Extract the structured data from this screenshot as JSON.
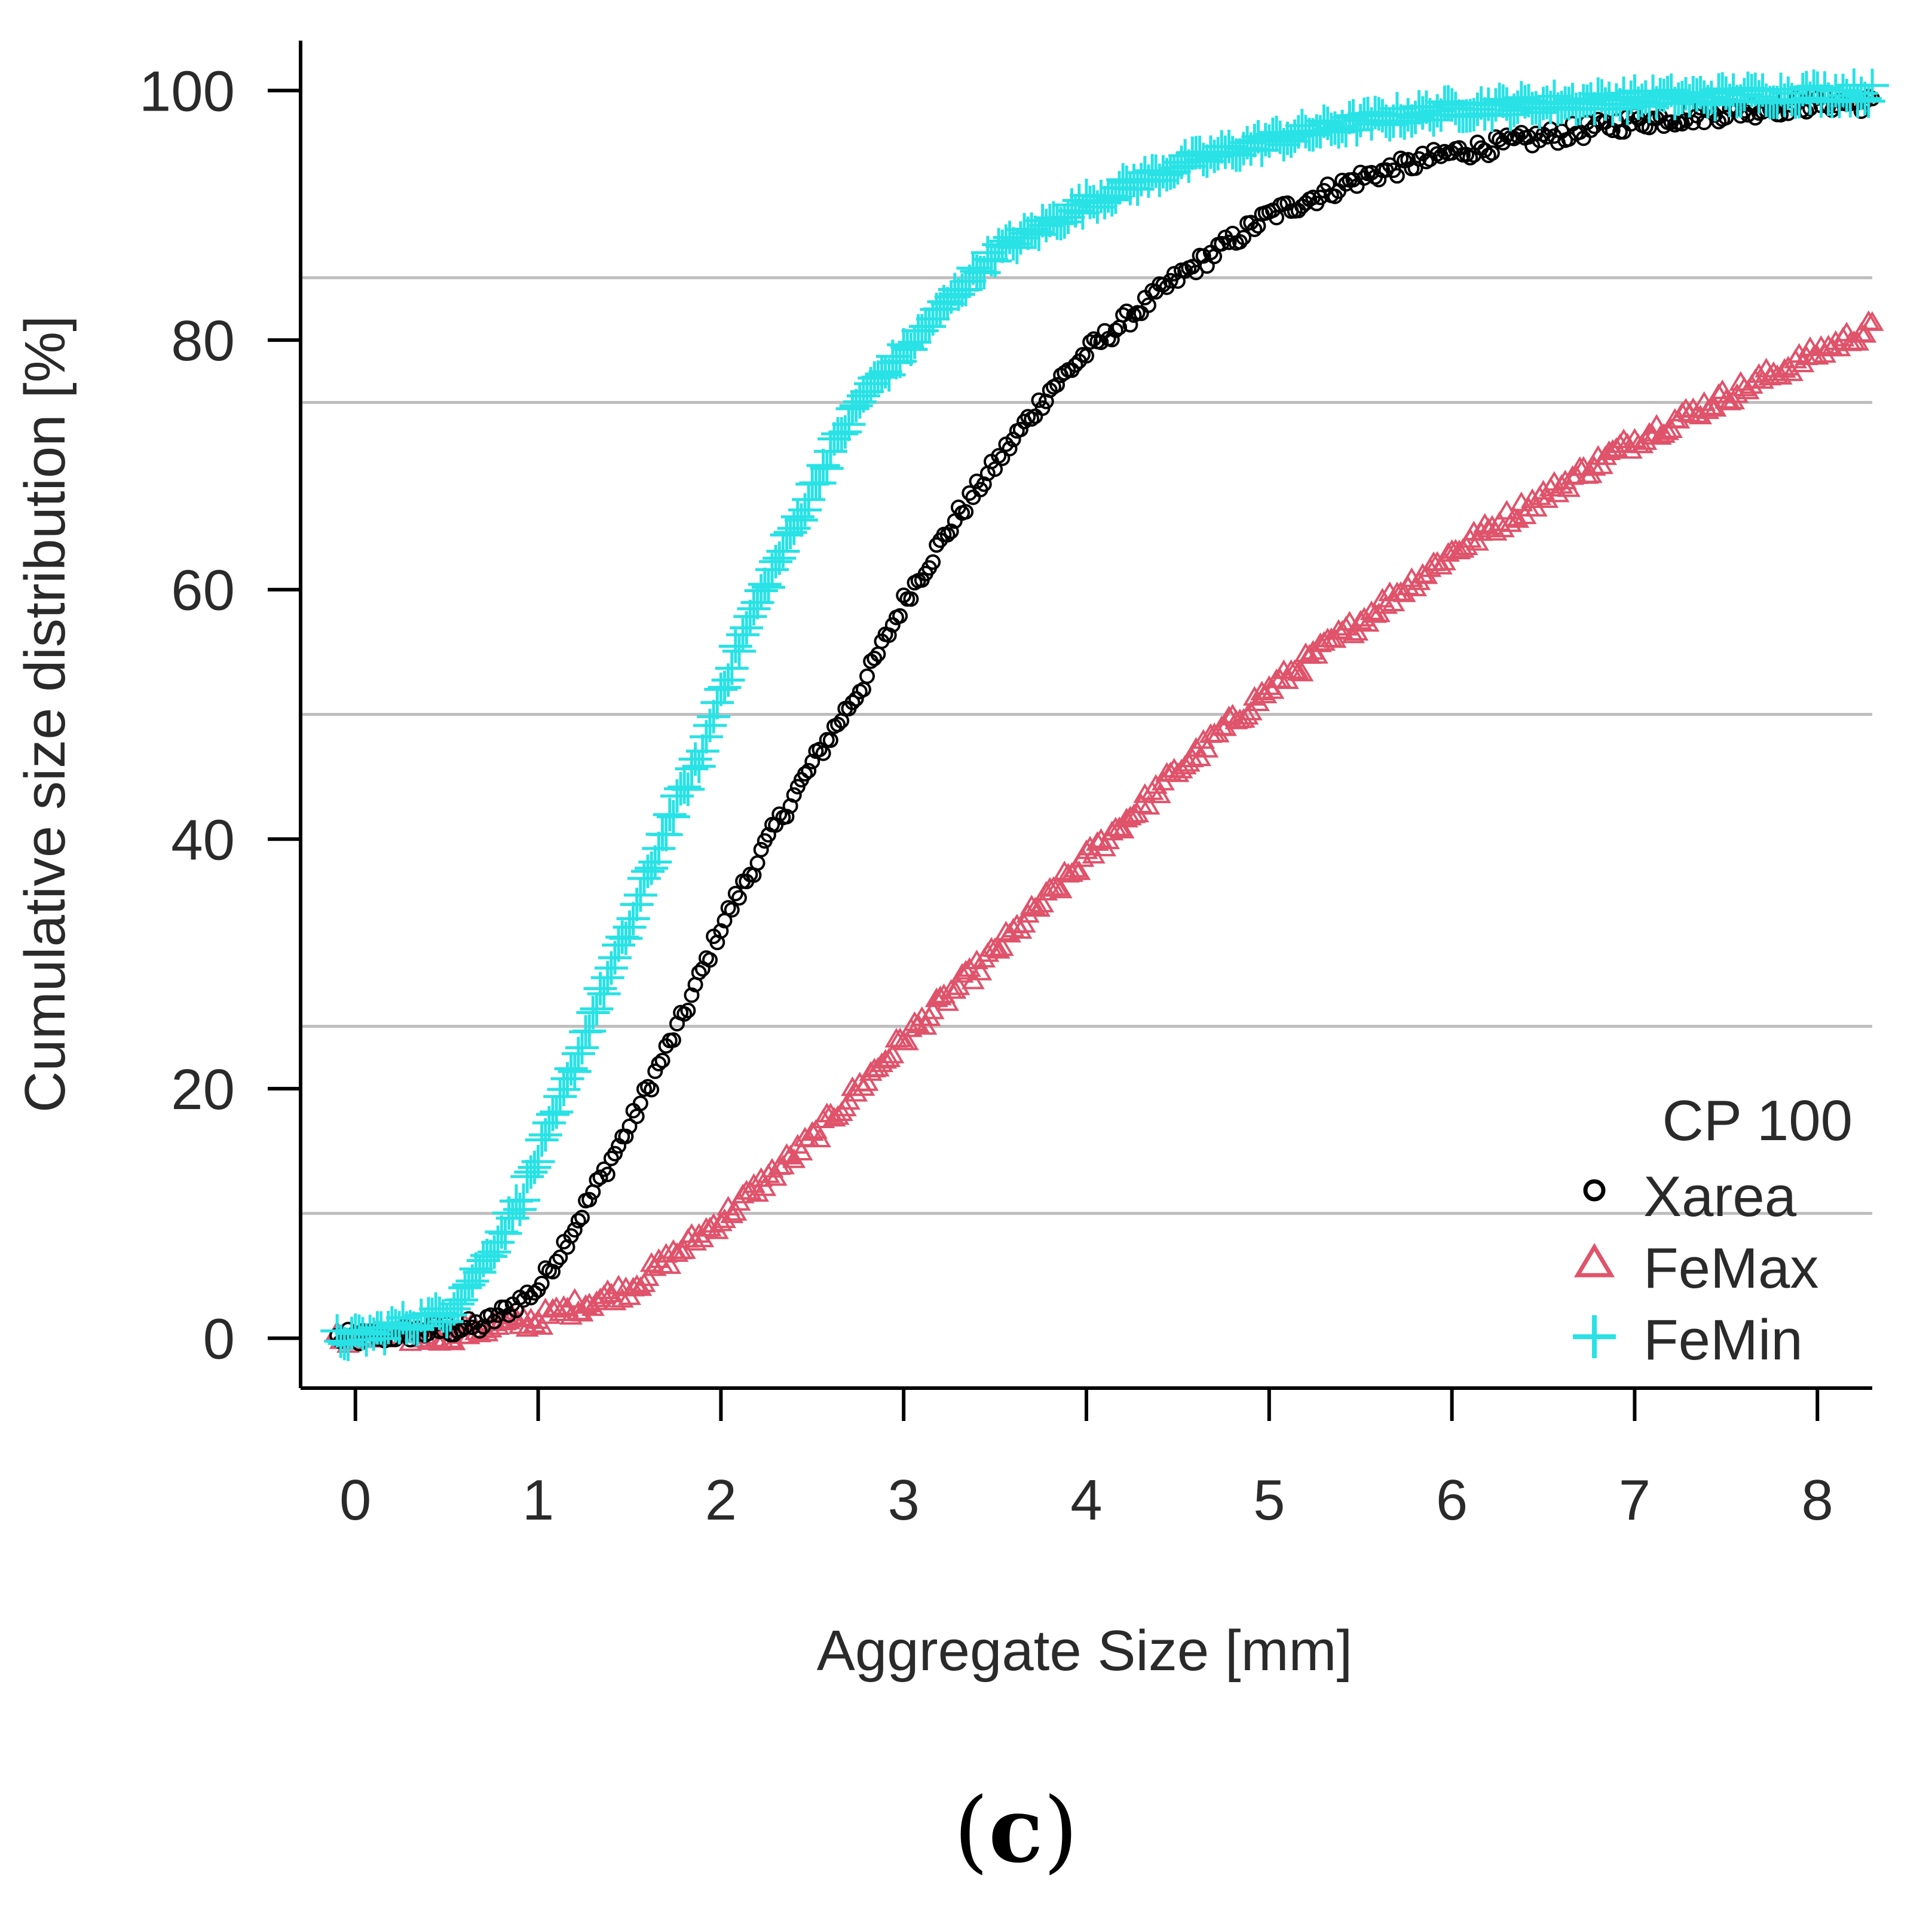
{
  "chart_data": {
    "type": "scatter",
    "xlabel": "Aggregate Size [mm]",
    "ylabel": "Cumulative size  distribution [%]",
    "xlim": [
      -0.3,
      8.3
    ],
    "ylim": [
      -4,
      104
    ],
    "x_ticks": [
      "0",
      "1",
      "2",
      "3",
      "4",
      "5",
      "6",
      "7",
      "8"
    ],
    "y_ticks": [
      "0",
      "20",
      "40",
      "60",
      "80",
      "100"
    ],
    "reference_lines": [
      10,
      25,
      50,
      75,
      85
    ],
    "legend": {
      "title": "CP 100",
      "position": "bottom-right",
      "entries": [
        {
          "label": "Xarea",
          "marker": "circle",
          "color": "#000000"
        },
        {
          "label": "FeMax",
          "marker": "triangle",
          "color": "#df536b"
        },
        {
          "label": "FeMin",
          "marker": "plus",
          "color": "#28e2e5"
        }
      ]
    },
    "series": [
      {
        "name": "Xarea",
        "marker": "circle",
        "color": "#000000",
        "x_range": [
          -0.1,
          8.3
        ],
        "curve": {
          "x": [
            0,
            0.7,
            1.0,
            1.2,
            1.5,
            1.8,
            2.0,
            2.3,
            2.5,
            2.8,
            3.0,
            3.3,
            3.5,
            3.8,
            4.0,
            4.5,
            5.0,
            5.5,
            6.0,
            7.0,
            8.0
          ],
          "y": [
            0,
            1,
            4,
            9,
            17,
            26,
            33,
            41,
            46,
            53,
            59,
            66,
            70,
            76,
            79,
            85,
            90,
            93,
            95,
            97.5,
            99
          ]
        }
      },
      {
        "name": "FeMax",
        "marker": "triangle",
        "color": "#df536b",
        "x_range": [
          -0.1,
          8.3
        ],
        "curve": {
          "x": [
            0,
            0.5,
            1.0,
            1.5,
            2.0,
            2.5,
            3.0,
            3.5,
            4.0,
            4.5,
            5.0,
            5.5,
            6.0,
            6.5,
            7.0,
            7.5,
            8.0,
            8.3
          ],
          "y": [
            0,
            0.3,
            1.5,
            4,
            9.5,
            16,
            24,
            31,
            38.5,
            45.5,
            52,
            57.5,
            63,
            67.5,
            72,
            75.5,
            79,
            81
          ]
        }
      },
      {
        "name": "FeMin",
        "marker": "plus",
        "color": "#28e2e5",
        "x_range": [
          -0.1,
          8.3
        ],
        "curve": {
          "x": [
            0,
            0.5,
            0.7,
            0.9,
            1.1,
            1.3,
            1.5,
            1.7,
            1.9,
            2.0,
            2.2,
            2.4,
            2.6,
            2.8,
            3.0,
            3.3,
            3.5,
            4.0,
            4.5,
            5.0,
            5.5,
            6.0,
            7.0,
            8.0
          ],
          "y": [
            0,
            2,
            6,
            11,
            18,
            26,
            33,
            41,
            47,
            52,
            59,
            65,
            71,
            76,
            79,
            84,
            87,
            91,
            94,
            96,
            97.5,
            98.5,
            99.3,
            99.8
          ]
        }
      }
    ]
  },
  "caption": {
    "open": "(",
    "letter": "c",
    "close": ")"
  }
}
